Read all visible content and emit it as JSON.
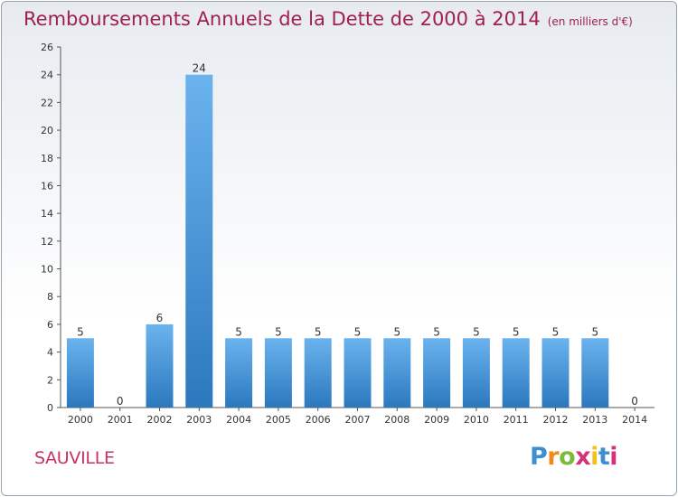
{
  "title": "Remboursements Annuels de la Dette de 2000 à 2014",
  "title_unit": "(en milliers d'€)",
  "town": "SAUVILLE",
  "logo": {
    "text": "Proxiti",
    "colors": [
      "#3e8fd0",
      "#f08a1c",
      "#7cba3b",
      "#d9307a",
      "#f2c21b",
      "#3e8fd0",
      "#d9307a"
    ]
  },
  "colors": {
    "bar_light": "#6bb3ee",
    "bar_dark": "#2b78be",
    "axis": "#555555",
    "text": "#333333"
  },
  "chart_data": {
    "type": "bar",
    "title": "Remboursements Annuels de la Dette de 2000 à 2014",
    "categories": [
      "2000",
      "2001",
      "2002",
      "2003",
      "2004",
      "2005",
      "2006",
      "2007",
      "2008",
      "2009",
      "2010",
      "2011",
      "2012",
      "2013",
      "2014"
    ],
    "values": [
      5,
      0,
      6,
      24,
      5,
      5,
      5,
      5,
      5,
      5,
      5,
      5,
      5,
      5,
      0
    ],
    "ylim": [
      0,
      26
    ],
    "yticks": [
      0,
      2,
      4,
      6,
      8,
      10,
      12,
      14,
      16,
      18,
      20,
      22,
      24,
      26
    ],
    "grid": false,
    "data_labels": true
  }
}
